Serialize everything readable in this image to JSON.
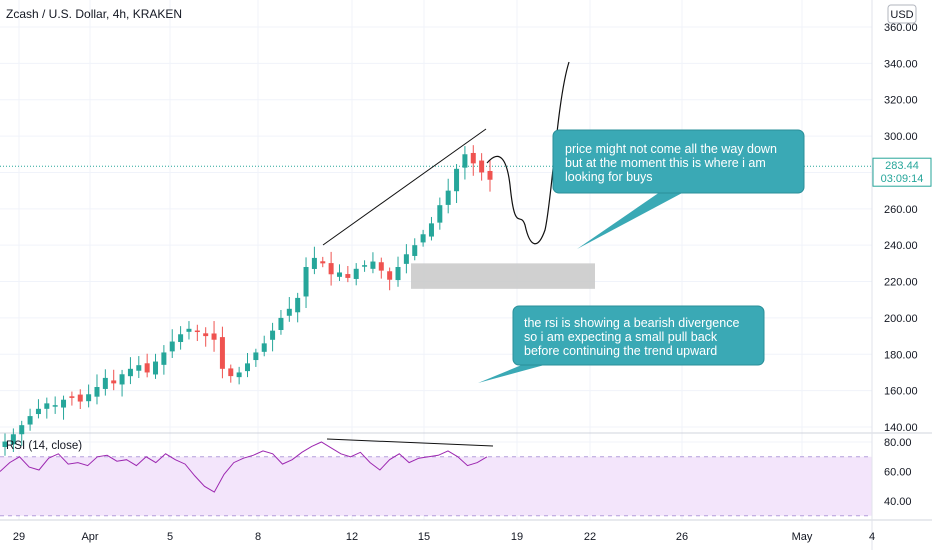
{
  "header": {
    "symbol_title": "Zcash / U.S. Dollar, 4h, KRAKEN",
    "currency_badge": "USD"
  },
  "price_tag": {
    "price": "283.44",
    "countdown": "03:09:14"
  },
  "rsi_title": "RSI (14, close)",
  "notes": [
    {
      "lines": [
        "price might not come all the way down",
        "but at the moment this is where i am",
        "looking for buys"
      ]
    },
    {
      "lines": [
        "the rsi is showing a bearish divergence",
        "so i am expecting a small pull back",
        "before continuing the trend upward"
      ]
    }
  ],
  "colors": {
    "up": "#26a69a",
    "down": "#ef5350",
    "callout": "#3aa9b5",
    "rsi_line": "#9c27b0",
    "rsi_band": "#f3e5fb",
    "price_line": "#26a69a",
    "zone": "#c8c8c8"
  },
  "chart_data": [
    {
      "type": "candlestick",
      "price_axis": {
        "ticks": [
          140,
          160,
          180,
          200,
          220,
          240,
          260,
          280,
          300,
          320,
          340,
          360
        ],
        "tick_labels": [
          "140.00",
          "160.00",
          "180.00",
          "200.00",
          "220.00",
          "240.00",
          "260.00",
          "280.00",
          "300.00",
          "320.00",
          "340.00",
          "360.00"
        ],
        "range": [
          128,
          368
        ]
      },
      "time_axis": {
        "labels": [
          "29",
          "Apr",
          "5",
          "8",
          "12",
          "15",
          "19",
          "22",
          "26",
          "May",
          "4"
        ]
      },
      "last_price": 283.44,
      "approx_closes": [
        132,
        136,
        141,
        146,
        150,
        153,
        152,
        155,
        156,
        154,
        158,
        162,
        167,
        164,
        169,
        172,
        174,
        170,
        176,
        181,
        187,
        191,
        194,
        193,
        190,
        188,
        172,
        168,
        170,
        175,
        181,
        186,
        193,
        200,
        205,
        211,
        228,
        233,
        230,
        224,
        225,
        222,
        227,
        229,
        231,
        226,
        221,
        228,
        235,
        240,
        246,
        252,
        262,
        270,
        282,
        290,
        285,
        280,
        276
      ],
      "support_zone": [
        216,
        230
      ]
    },
    {
      "type": "line",
      "title": "RSI (14, close)",
      "y_ticks": [
        40,
        60,
        80
      ],
      "y_tick_labels": [
        "40.00",
        "60.00",
        "80.00"
      ],
      "bands": [
        30,
        70
      ],
      "approx_values": [
        60,
        66,
        70,
        63,
        61,
        69,
        72,
        65,
        66,
        64,
        70,
        71,
        67,
        68,
        64,
        70,
        66,
        72,
        68,
        65,
        57,
        50,
        46,
        58,
        66,
        69,
        71,
        74,
        72,
        65,
        68,
        73,
        77,
        80,
        76,
        72,
        70,
        73,
        66,
        61,
        68,
        72,
        66,
        69,
        70,
        71,
        74,
        70,
        64,
        66,
        70
      ]
    }
  ]
}
